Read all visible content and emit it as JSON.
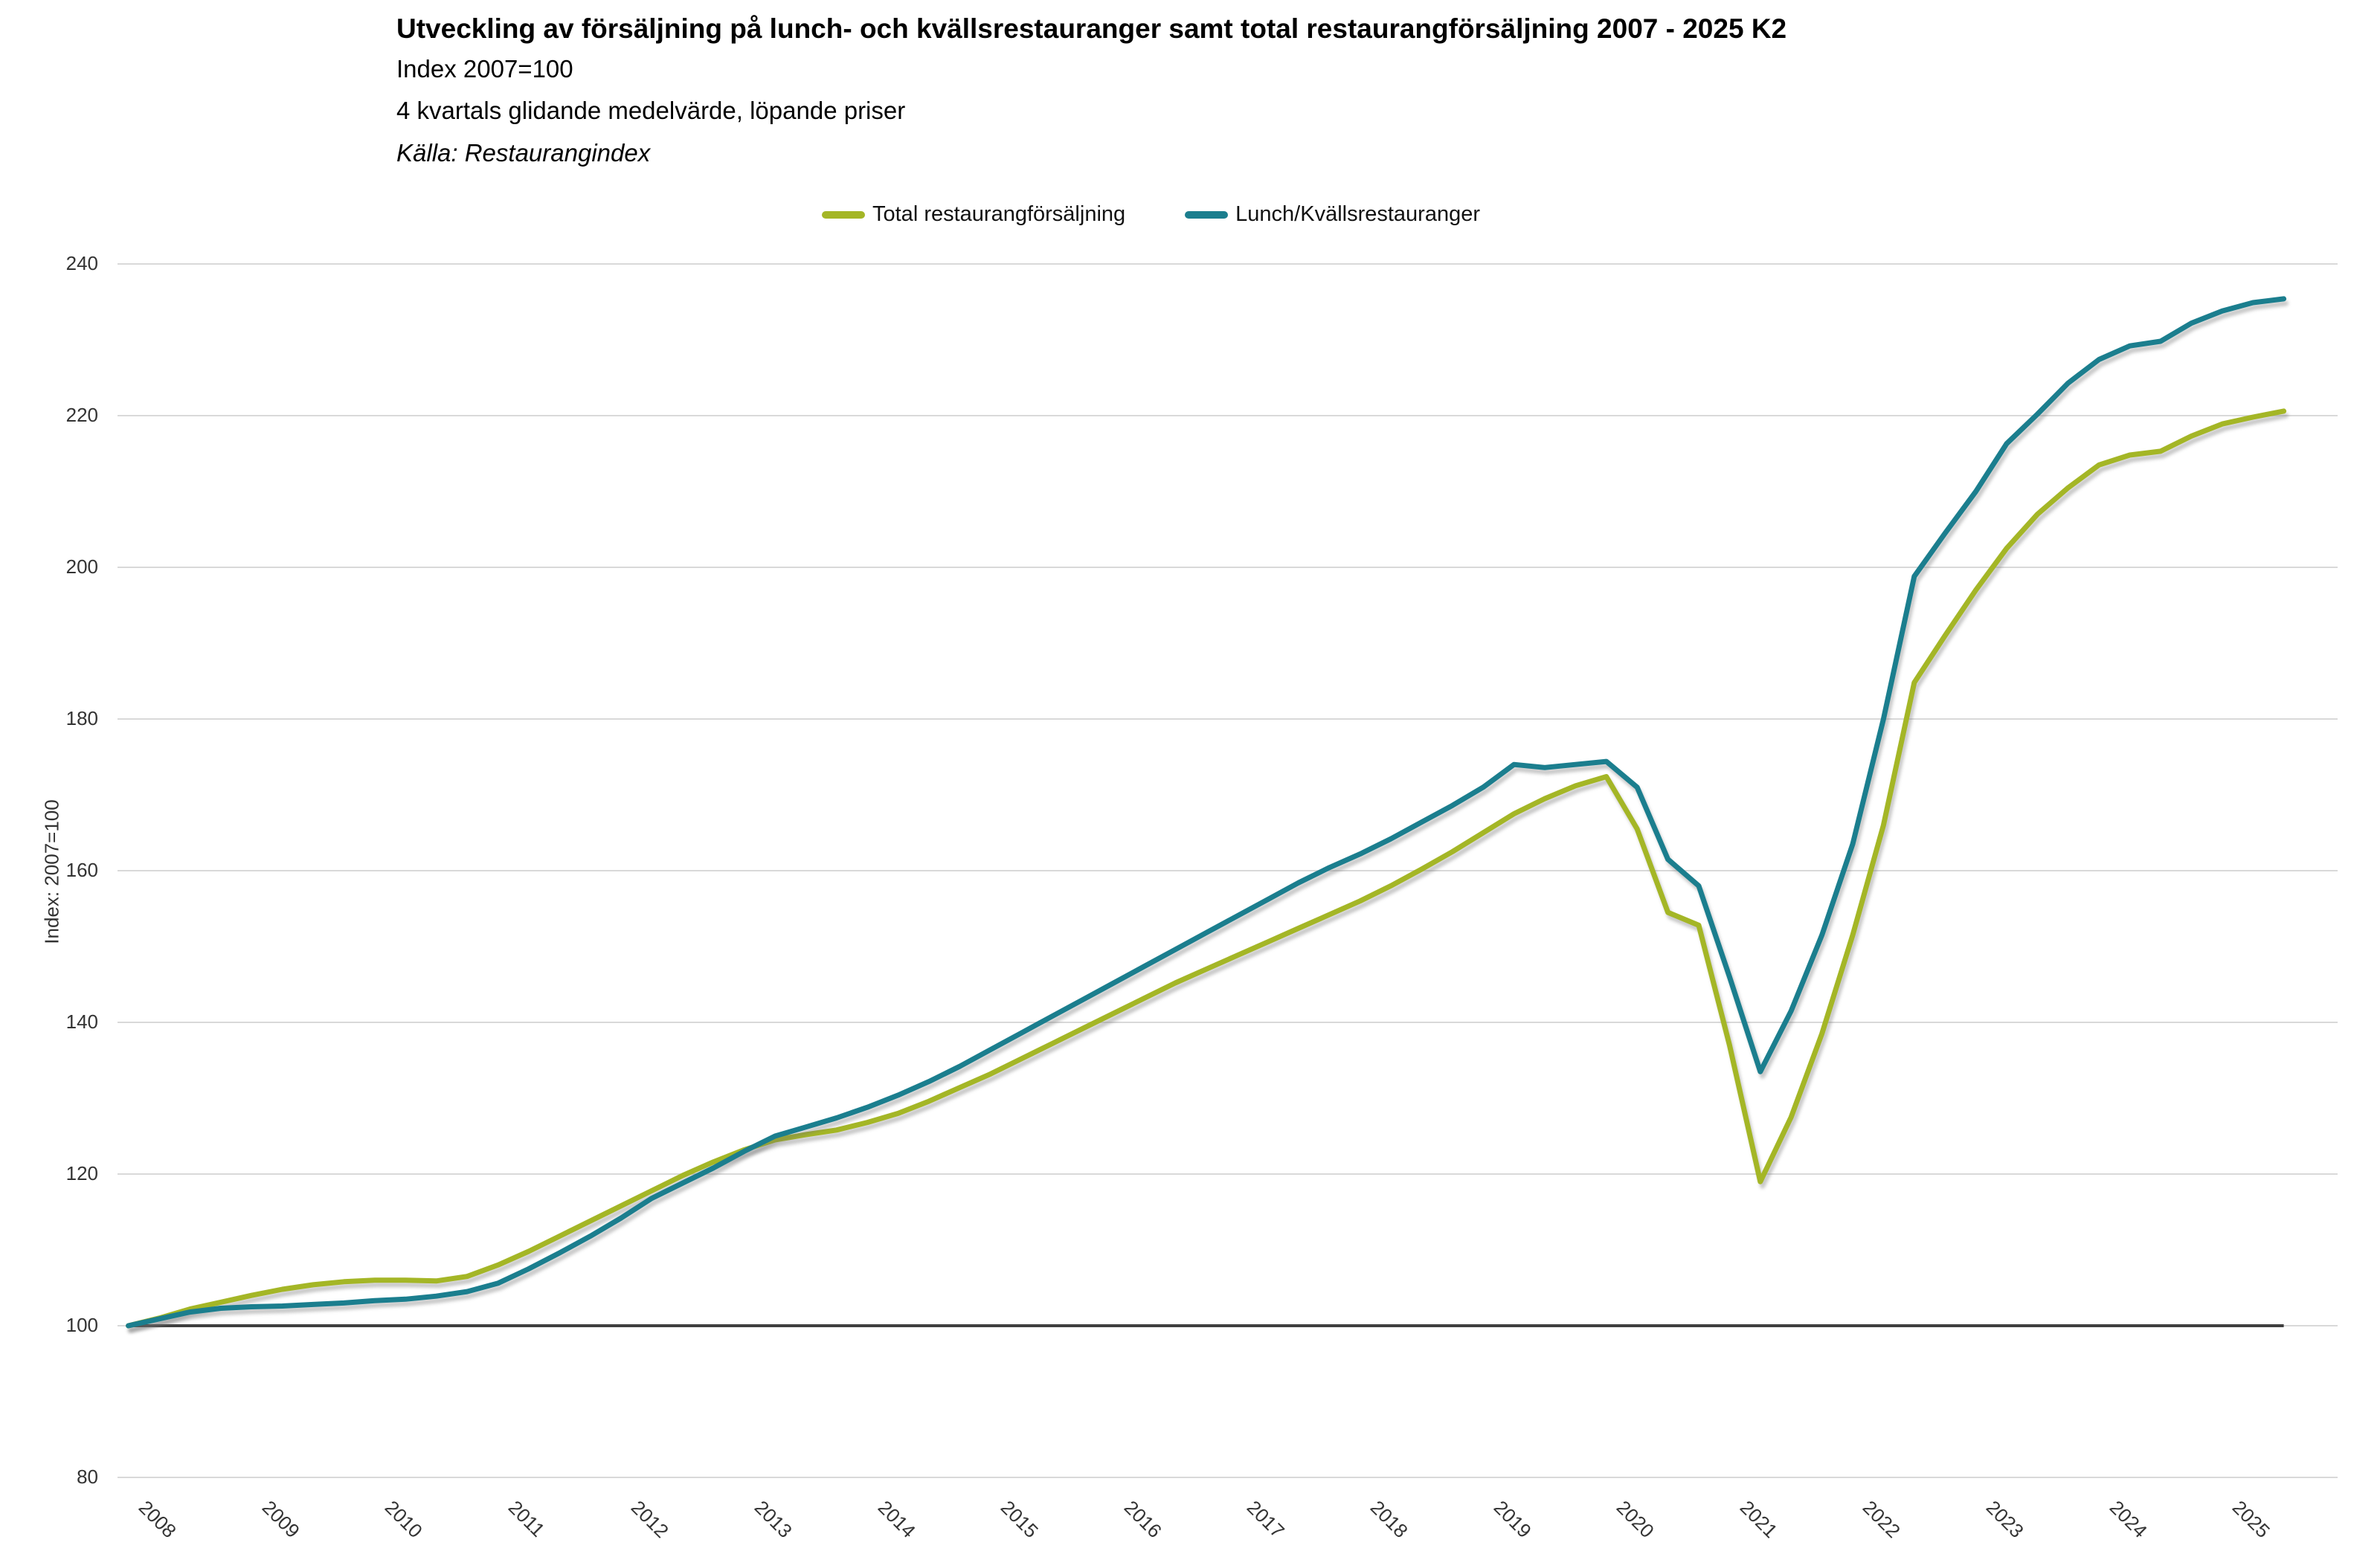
{
  "chart_data": {
    "type": "line",
    "title": "Utveckling av försäljning på lunch- och kvällsrestauranger samt total restaurangförsäljning 2007 - 2025 K2",
    "subtitle": "Index 2007=100",
    "subtitle2": "4 kvartals glidande medelvärde, löpande priser",
    "source": "Källa: Restaurangindex",
    "ylabel": "Index: 2007=100",
    "ylim": [
      80,
      240
    ],
    "yticks": [
      80,
      100,
      120,
      140,
      160,
      180,
      200,
      220,
      240
    ],
    "baseline": 100,
    "grid": true,
    "legend_position": "top-center",
    "x_year_labels": [
      "2008",
      "2009",
      "2010",
      "2011",
      "2012",
      "2013",
      "2014",
      "2015",
      "2016",
      "2017",
      "2018",
      "2019",
      "2020",
      "2021",
      "2022",
      "2023",
      "2024",
      "2025"
    ],
    "quarters": [
      "2007K4",
      "2008K1",
      "2008K2",
      "2008K3",
      "2008K4",
      "2009K1",
      "2009K2",
      "2009K3",
      "2009K4",
      "2010K1",
      "2010K2",
      "2010K3",
      "2010K4",
      "2011K1",
      "2011K2",
      "2011K3",
      "2011K4",
      "2012K1",
      "2012K2",
      "2012K3",
      "2012K4",
      "2013K1",
      "2013K2",
      "2013K3",
      "2013K4",
      "2014K1",
      "2014K2",
      "2014K3",
      "2014K4",
      "2015K1",
      "2015K2",
      "2015K3",
      "2015K4",
      "2016K1",
      "2016K2",
      "2016K3",
      "2016K4",
      "2017K1",
      "2017K2",
      "2017K3",
      "2017K4",
      "2018K1",
      "2018K2",
      "2018K3",
      "2018K4",
      "2019K1",
      "2019K2",
      "2019K3",
      "2019K4",
      "2020K1",
      "2020K2",
      "2020K3",
      "2020K4",
      "2021K1",
      "2021K2",
      "2021K3",
      "2021K4",
      "2022K1",
      "2022K2",
      "2022K3",
      "2022K4",
      "2023K1",
      "2023K2",
      "2023K3",
      "2023K4",
      "2024K1",
      "2024K2",
      "2024K3",
      "2024K4",
      "2025K1",
      "2025K2"
    ],
    "series": [
      {
        "name": "Total restaurangförsäljning",
        "color": "#a4b626",
        "values": [
          100.0,
          101.0,
          102.2,
          103.1,
          104.0,
          104.8,
          105.4,
          105.8,
          106.0,
          106.0,
          105.9,
          106.5,
          108.0,
          109.8,
          111.8,
          113.8,
          115.8,
          117.8,
          119.8,
          121.6,
          123.2,
          124.5,
          125.2,
          125.8,
          126.8,
          128.0,
          129.6,
          131.4,
          133.2,
          135.2,
          137.2,
          139.2,
          141.2,
          143.2,
          145.2,
          147.0,
          148.8,
          150.6,
          152.4,
          154.2,
          156.0,
          158.0,
          160.2,
          162.5,
          165.0,
          167.5,
          169.5,
          171.2,
          172.4,
          165.5,
          154.5,
          152.8,
          137.0,
          119.0,
          127.5,
          138.5,
          151.5,
          166.0,
          184.8,
          191.0,
          197.0,
          202.5,
          207.0,
          210.5,
          213.5,
          214.8,
          215.3,
          217.3,
          218.9,
          219.8,
          220.6
        ]
      },
      {
        "name": "Lunch/Kvällsrestauranger",
        "color": "#1b7e8e",
        "values": [
          100.0,
          100.9,
          101.8,
          102.3,
          102.5,
          102.6,
          102.8,
          103.0,
          103.3,
          103.5,
          103.9,
          104.5,
          105.6,
          107.5,
          109.6,
          111.8,
          114.2,
          116.8,
          118.8,
          120.8,
          123.0,
          125.0,
          126.2,
          127.4,
          128.8,
          130.4,
          132.2,
          134.2,
          136.4,
          138.6,
          140.8,
          143.0,
          145.2,
          147.4,
          149.6,
          151.8,
          154.0,
          156.2,
          158.4,
          160.4,
          162.2,
          164.2,
          166.4,
          168.6,
          171.0,
          174.0,
          173.6,
          174.0,
          174.4,
          171.0,
          161.5,
          158.0,
          146.0,
          133.5,
          141.5,
          151.5,
          163.5,
          180.0,
          198.8,
          204.5,
          210.0,
          216.3,
          220.2,
          224.3,
          227.4,
          229.2,
          229.8,
          232.2,
          233.8,
          234.9,
          235.4
        ]
      }
    ]
  },
  "colors": {
    "gridline": "#d9d9d9",
    "baseline": "#3f3f3f",
    "tick_text": "#333333",
    "title_text": "#000000"
  }
}
